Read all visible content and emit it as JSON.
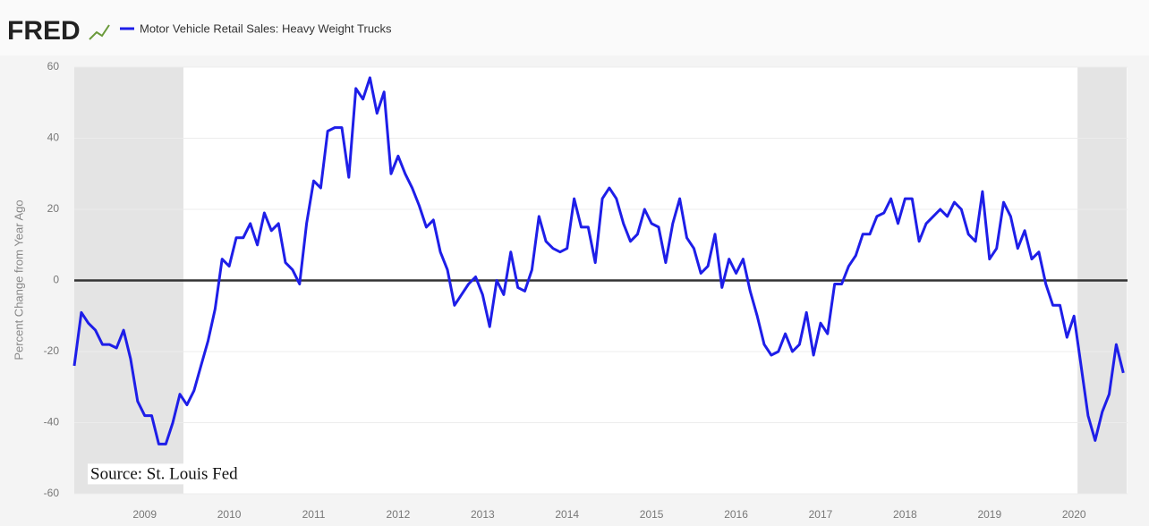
{
  "chart_data": {
    "type": "line",
    "logo": "FRED",
    "ylabel": "Percent Change from Year Ago",
    "annotation": "Source: St. Louis Fed",
    "categories": [
      null,
      null,
      null,
      null,
      null,
      null,
      null,
      null,
      null,
      null,
      "2009",
      null,
      null,
      null,
      null,
      null,
      null,
      null,
      null,
      null,
      null,
      null,
      "2010",
      null,
      null,
      null,
      null,
      null,
      null,
      null,
      null,
      null,
      null,
      null,
      "2011",
      null,
      null,
      null,
      null,
      null,
      null,
      null,
      null,
      null,
      null,
      null,
      "2012",
      null,
      null,
      null,
      null,
      null,
      null,
      null,
      null,
      null,
      null,
      null,
      "2013",
      null,
      null,
      null,
      null,
      null,
      null,
      null,
      null,
      null,
      null,
      null,
      "2014",
      null,
      null,
      null,
      null,
      null,
      null,
      null,
      null,
      null,
      null,
      null,
      "2015",
      null,
      null,
      null,
      null,
      null,
      null,
      null,
      null,
      null,
      null,
      null,
      "2016",
      null,
      null,
      null,
      null,
      null,
      null,
      null,
      null,
      null,
      null,
      null,
      "2017",
      null,
      null,
      null,
      null,
      null,
      null,
      null,
      null,
      null,
      null,
      null,
      "2018",
      null,
      null,
      null,
      null,
      null,
      null,
      null,
      null,
      null,
      null,
      null,
      "2019",
      null,
      null,
      null,
      null,
      null,
      null,
      null,
      null,
      null,
      null,
      null,
      "2020",
      null,
      null,
      null,
      null,
      null,
      null,
      null
    ],
    "series": [
      {
        "name": "Motor Vehicle Retail Sales: Heavy Weight Trucks",
        "color": "#1e1ee8",
        "values": [
          -24,
          -9,
          -12,
          -14,
          -18,
          -18,
          -19,
          -14,
          -22,
          -34,
          -38,
          -38,
          -46,
          -46,
          -40,
          -32,
          -35,
          -31,
          -24,
          -17,
          -8,
          6,
          4,
          12,
          12,
          16,
          10,
          19,
          14,
          16,
          5,
          3,
          -1,
          16,
          28,
          26,
          42,
          43,
          43,
          29,
          54,
          51,
          57,
          47,
          53,
          30,
          35,
          30,
          26,
          21,
          15,
          17,
          8,
          3,
          -7,
          -4,
          -1,
          1,
          -4,
          -13,
          0,
          -4,
          8,
          -2,
          -3,
          3,
          18,
          11,
          9,
          8,
          9,
          23,
          15,
          15,
          5,
          23,
          26,
          23,
          16,
          11,
          13,
          20,
          16,
          15,
          5,
          16,
          23,
          12,
          9,
          2,
          4,
          13,
          -2,
          6,
          2,
          6,
          -3,
          -10,
          -18,
          -21,
          -20,
          -15,
          -20,
          -18,
          -9,
          -21,
          -12,
          -15,
          -1,
          -1,
          4,
          7,
          13,
          13,
          18,
          19,
          23,
          16,
          23,
          23,
          11,
          16,
          18,
          20,
          18,
          22,
          20,
          13,
          11,
          25,
          6,
          9,
          22,
          18,
          9,
          14,
          6,
          8,
          -1,
          -7,
          -7,
          -16,
          -10,
          -24,
          -38,
          -45,
          -37,
          -32,
          -18,
          -26
        ]
      }
    ],
    "recession_shading": [
      [
        0,
        15
      ],
      [
        143,
        149
      ]
    ],
    "ylim": [
      -60,
      60
    ],
    "yticks": [
      -60,
      -40,
      -20,
      0,
      20,
      40,
      60
    ],
    "grid": true,
    "zero_line": true
  }
}
